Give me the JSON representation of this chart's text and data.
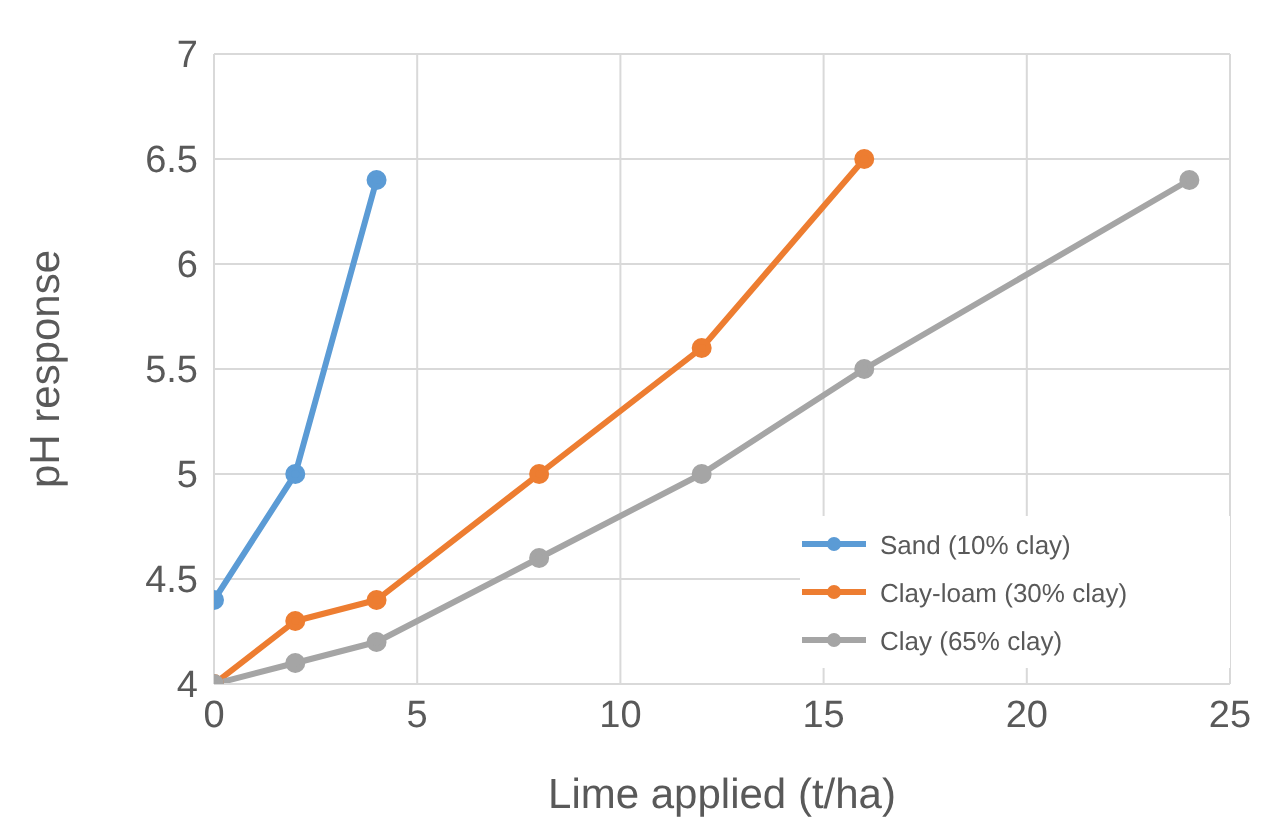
{
  "chart_data": {
    "type": "line",
    "xlabel": "Lime applied (t/ha)",
    "ylabel": "pH response",
    "xlim": [
      0,
      25
    ],
    "xticks": [
      0,
      5,
      10,
      15,
      20,
      25
    ],
    "ylim": [
      4,
      7
    ],
    "yticks": [
      4,
      4.5,
      5,
      5.5,
      6,
      6.5,
      7
    ],
    "grid": true,
    "legend": "bottom right",
    "marker": "circle",
    "series": [
      {
        "name": "Sand (10% clay)",
        "color": "#5b9bd5",
        "x": [
          0,
          2,
          4
        ],
        "values": [
          4.4,
          5.0,
          6.4
        ]
      },
      {
        "name": "Clay-loam (30% clay)",
        "color": "#ed7d31",
        "x": [
          0,
          2,
          4,
          8,
          12,
          16
        ],
        "values": [
          4.0,
          4.3,
          4.4,
          5.0,
          5.6,
          6.5
        ]
      },
      {
        "name": "Clay (65% clay)",
        "color": "#a5a5a5",
        "x": [
          0,
          2,
          4,
          8,
          12,
          16,
          24
        ],
        "values": [
          4.0,
          4.1,
          4.2,
          4.6,
          5.0,
          5.5,
          6.4
        ]
      }
    ]
  }
}
